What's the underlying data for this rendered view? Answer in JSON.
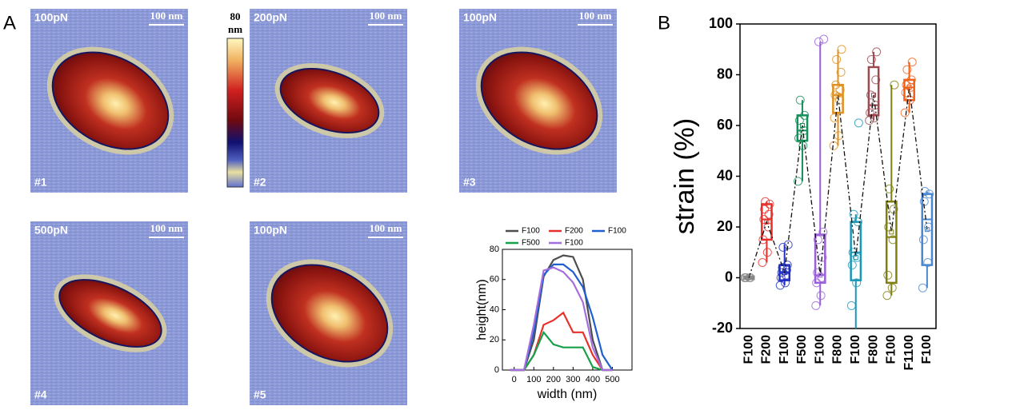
{
  "panels": {
    "a": "A",
    "b": "B"
  },
  "images": [
    {
      "force": "100pN",
      "scale": "100 nm",
      "id": "#1"
    },
    {
      "force": "200pN",
      "scale": "100 nm",
      "id": "#2"
    },
    {
      "force": "100pN",
      "scale": "100 nm",
      "id": "#3"
    },
    {
      "force": "500pN",
      "scale": "100 nm",
      "id": "#4"
    },
    {
      "force": "100pN",
      "scale": "100 nm",
      "id": "#5"
    }
  ],
  "colorbar": {
    "max": "80",
    "unit": "nm"
  },
  "chart_data": [
    {
      "type": "line",
      "xlabel": "width (nm)",
      "ylabel": "height(nm)",
      "x": [
        -20,
        0,
        50,
        100,
        150,
        200,
        250,
        300,
        350,
        400,
        450,
        500
      ],
      "series": [
        {
          "name": "F100",
          "color": "#4d4d4d",
          "values": [
            0,
            0,
            0,
            20,
            62,
            73,
            76,
            75,
            60,
            20,
            0,
            0
          ]
        },
        {
          "name": "F200",
          "color": "#e8302a",
          "values": [
            0,
            0,
            0,
            10,
            30,
            33,
            38,
            25,
            25,
            10,
            0,
            0
          ]
        },
        {
          "name": "F100",
          "color": "#1f5fd0",
          "values": [
            0,
            0,
            0,
            25,
            63,
            70,
            70,
            65,
            55,
            35,
            10,
            0
          ]
        },
        {
          "name": "F500",
          "color": "#16a04a",
          "values": [
            0,
            0,
            0,
            10,
            25,
            17,
            15,
            15,
            15,
            2,
            0,
            0
          ]
        },
        {
          "name": "F100",
          "color": "#a56ee0",
          "values": [
            0,
            0,
            0,
            30,
            66,
            68,
            65,
            58,
            45,
            15,
            0,
            0
          ]
        }
      ],
      "xlim": [
        -60,
        600
      ],
      "xticks": [
        0,
        100,
        200,
        300,
        400,
        500
      ],
      "ylim": [
        0,
        80
      ],
      "yticks": [
        0,
        20,
        40,
        60,
        80
      ]
    },
    {
      "type": "box",
      "ylabel": "strain (%)",
      "categories": [
        "F100",
        "F200",
        "F100",
        "F500",
        "F100",
        "F800",
        "F100",
        "F800",
        "F100",
        "F1100",
        "F100"
      ],
      "boxes": [
        {
          "color": "#888888",
          "q1": -0.5,
          "median": 0,
          "q3": 0.5,
          "low": -1,
          "high": 1,
          "mean": 0,
          "points": [
            0,
            0,
            0,
            0,
            0
          ]
        },
        {
          "color": "#e8302a",
          "q1": 15,
          "median": 23,
          "q3": 29,
          "low": 6,
          "high": 30,
          "mean": 22,
          "points": [
            6,
            10,
            15,
            20,
            23,
            25,
            27,
            29,
            30
          ]
        },
        {
          "color": "#2030c0",
          "q1": -1,
          "median": 2,
          "q3": 5,
          "low": -3,
          "high": 13,
          "mean": 2,
          "points": [
            -3,
            -2,
            0,
            1,
            2,
            3,
            4,
            5,
            12,
            13
          ]
        },
        {
          "color": "#16905a",
          "q1": 54,
          "median": 58,
          "q3": 64,
          "low": 38,
          "high": 70,
          "mean": 60,
          "points": [
            38,
            52,
            55,
            58,
            62,
            64,
            70
          ]
        },
        {
          "color": "#9a60d8",
          "q1": -2,
          "median": 1,
          "q3": 17,
          "low": -11,
          "high": 93,
          "mean": 1,
          "points": [
            -11,
            -7,
            -2,
            0,
            2,
            8,
            15,
            18,
            93,
            94
          ]
        },
        {
          "color": "#e09020",
          "q1": 65,
          "median": 72,
          "q3": 76,
          "low": 52,
          "high": 90,
          "mean": 72,
          "points": [
            52,
            56,
            63,
            70,
            72,
            74,
            76,
            81,
            86,
            90
          ]
        },
        {
          "color": "#1898b8",
          "q1": -1,
          "median": 10,
          "q3": 22,
          "low": -20,
          "high": 25,
          "mean": 8,
          "points": [
            -11,
            -2,
            5,
            8,
            10,
            22,
            25,
            61
          ]
        },
        {
          "color": "#9a4a50",
          "q1": 64,
          "median": 68,
          "q3": 83,
          "low": 62,
          "high": 89,
          "mean": 72,
          "points": [
            62,
            63,
            65,
            68,
            72,
            78,
            86,
            89
          ]
        },
        {
          "color": "#808010",
          "q1": -2,
          "median": 16,
          "q3": 30,
          "low": -7,
          "high": 76,
          "mean": 18,
          "points": [
            -7,
            -4,
            1,
            15,
            20,
            27,
            35,
            76
          ]
        },
        {
          "color": "#f06018",
          "q1": 70,
          "median": 75,
          "q3": 78,
          "low": 65,
          "high": 85,
          "mean": 75,
          "points": [
            65,
            70,
            73,
            75,
            76,
            78,
            82,
            85
          ]
        },
        {
          "color": "#4a88d0",
          "q1": 5,
          "median": 23,
          "q3": 33,
          "low": -4,
          "high": 34,
          "mean": 19,
          "points": [
            -4,
            6,
            15,
            20,
            30,
            33,
            34
          ]
        }
      ],
      "ylim": [
        -20,
        100
      ],
      "yticks": [
        -20,
        0,
        20,
        40,
        60,
        80,
        100
      ]
    }
  ]
}
